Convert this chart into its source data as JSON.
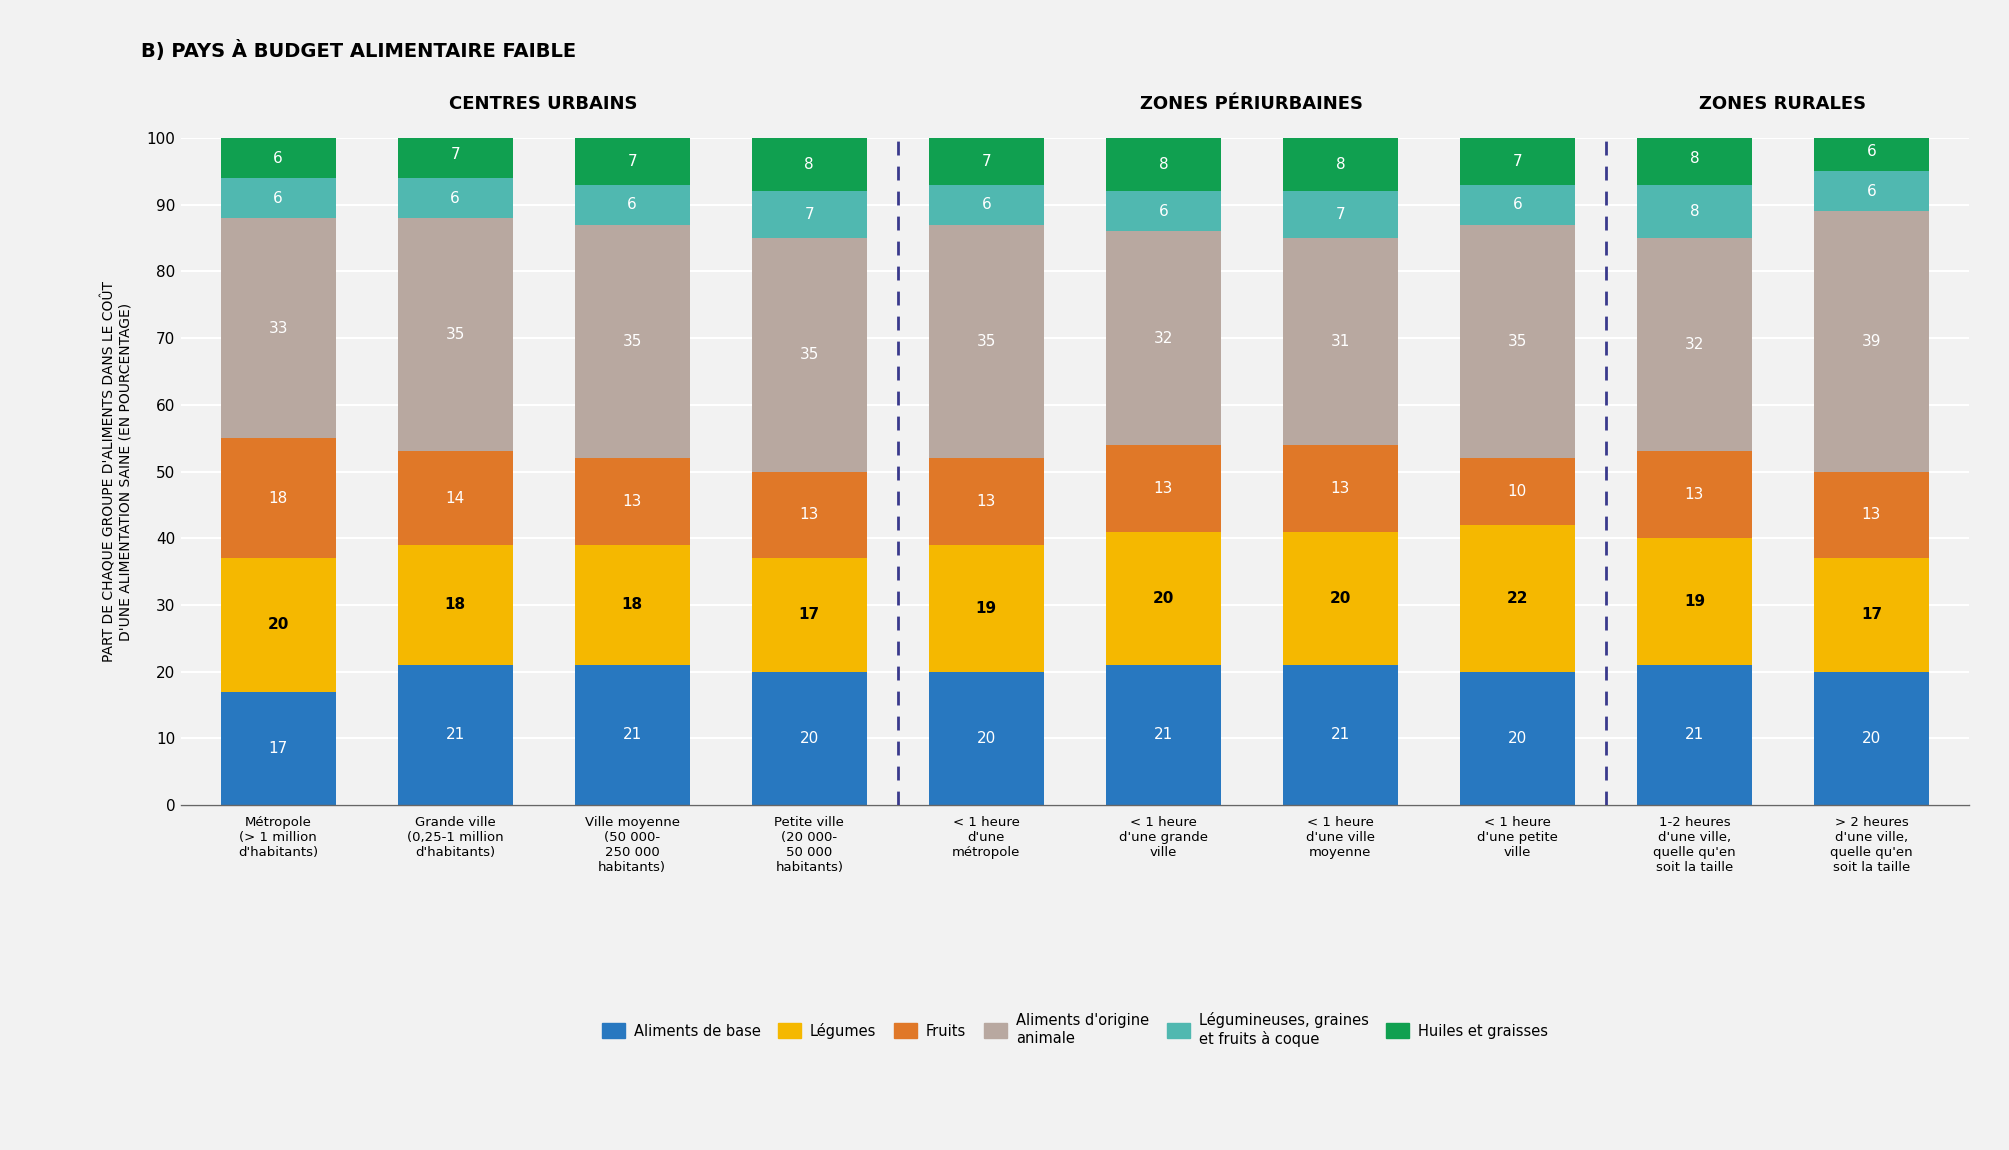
{
  "title": "B) PAYS À BUDGET ALIMENTAIRE FAIBLE",
  "ylabel": "PART DE CHAQUE GROUPE D'ALIMENTS DANS LE COÛT\nD'UNE ALIMENTATION SAINE (EN POURCENTAGE)",
  "section_labels": [
    "CENTRES URBAINS",
    "ZONES PÉRIURBAINES",
    "ZONES RURALES"
  ],
  "categories": [
    "Métropole\n(> 1 million\nd'habitants)",
    "Grande ville\n(0,25-1 million\nd'habitants)",
    "Ville moyenne\n(50 000-\n250 000\nhabitants)",
    "Petite ville\n(20 000-\n50 000\nhabitants)",
    "< 1 heure\nd'une\nmétropole",
    "< 1 heure\nd'une grande\nville",
    "< 1 heure\nd'une ville\nmoyenne",
    "< 1 heure\nd'une petite\nville",
    "1-2 heures\nd'une ville,\nquelle qu'en\nsoit la taille",
    "> 2 heures\nd'une ville,\nquelle qu'en\nsoit la taille"
  ],
  "series": {
    "Aliments de base": [
      17,
      21,
      21,
      20,
      20,
      21,
      21,
      20,
      21,
      20
    ],
    "Légumes": [
      20,
      18,
      18,
      17,
      19,
      20,
      20,
      22,
      19,
      17
    ],
    "Fruits": [
      18,
      14,
      13,
      13,
      13,
      13,
      13,
      10,
      13,
      13
    ],
    "Aliments d'origine animale": [
      33,
      35,
      35,
      35,
      35,
      32,
      31,
      35,
      32,
      39
    ],
    "Légumineuses, graines et fruits à coque": [
      6,
      6,
      6,
      7,
      6,
      6,
      7,
      6,
      8,
      6
    ],
    "Huiles et graisses": [
      6,
      7,
      7,
      8,
      7,
      8,
      8,
      7,
      8,
      6
    ]
  },
  "colors": {
    "Aliments de base": "#2878c0",
    "Légumes": "#f5b800",
    "Fruits": "#e07828",
    "Aliments d'origine animale": "#b8a8a0",
    "Légumineuses, graines et fruits à coque": "#50b8b0",
    "Huiles et graisses": "#10a050"
  },
  "legend_labels": [
    "Aliments de base",
    "Légumes",
    "Fruits",
    "Aliments d'origine\nanimale",
    "Légumineuses, graines\net fruits à coque",
    "Huiles et graisses"
  ],
  "legend_keys": [
    "Aliments de base",
    "Légumes",
    "Fruits",
    "Aliments d'origine animale",
    "Légumineuses, graines et fruits à coque",
    "Huiles et graisses"
  ],
  "section_dividers": [
    3.5,
    7.5
  ],
  "section_centers": [
    1.5,
    5.5,
    8.5
  ],
  "ylim": [
    0,
    100
  ],
  "background_color": "#f2f2f2",
  "plot_bg_color": "#f2f2f2",
  "grid_color": "#ffffff",
  "bar_width": 0.65
}
